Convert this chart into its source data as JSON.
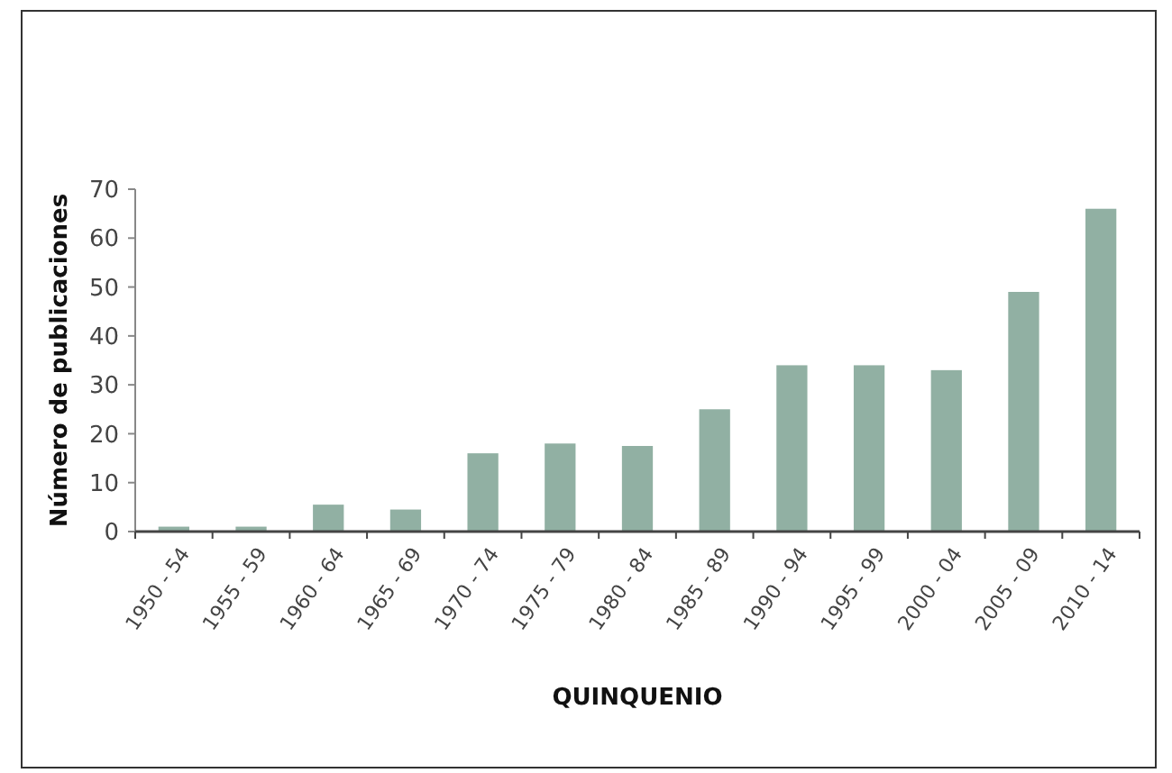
{
  "chart_data": {
    "type": "bar",
    "xlabel": "QUINQUENIO",
    "ylabel": "Número de publicaciones",
    "categories": [
      "1950 - 54",
      "1955 - 59",
      "1960 - 64",
      "1965 - 69",
      "1970 - 74",
      "1975 - 79",
      "1980 - 84",
      "1985 - 89",
      "1990 - 94",
      "1995 - 99",
      "2000 - 04",
      "2005 - 09",
      "2010 - 14"
    ],
    "values": [
      1,
      1,
      5.5,
      4.5,
      16,
      18,
      17.5,
      25,
      34,
      34,
      33,
      49,
      66
    ],
    "color": "#91b0a3",
    "ylim": [
      0,
      70
    ],
    "yticks": [
      0,
      10,
      20,
      30,
      40,
      50,
      60,
      70
    ]
  }
}
